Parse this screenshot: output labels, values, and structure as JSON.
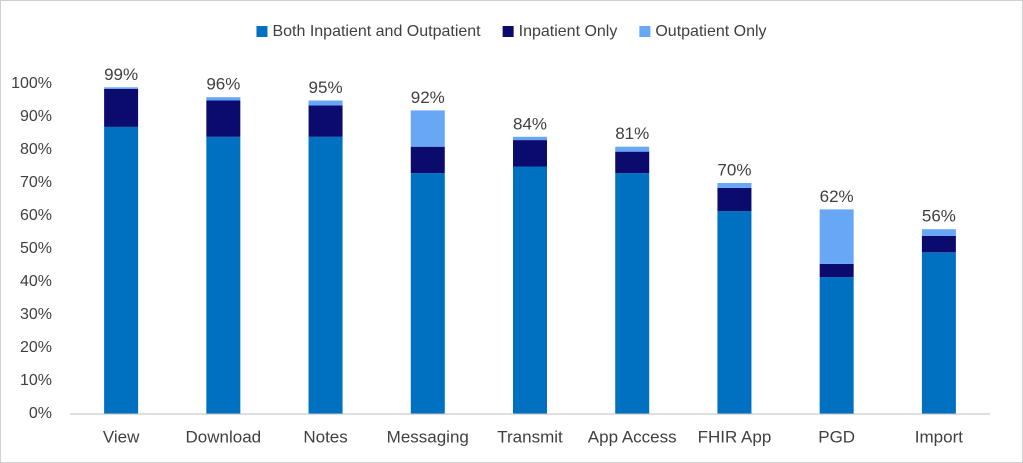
{
  "chart_data": {
    "type": "stacked_bar",
    "categories": [
      "View",
      "Download",
      "Notes",
      "Messaging",
      "Transmit",
      "App Access",
      "FHIR App",
      "PGD",
      "Import"
    ],
    "series": [
      {
        "name": "Both Inpatient and Outpatient",
        "color": "#0070c0",
        "values": [
          87,
          84,
          84,
          73,
          75,
          73,
          61.5,
          41.5,
          49
        ]
      },
      {
        "name": "Inpatient Only",
        "color": "#0b0b6e",
        "values": [
          11.5,
          11,
          9.5,
          8,
          8,
          6.5,
          7,
          4,
          5
        ]
      },
      {
        "name": "Outpatient Only",
        "color": "#68a6f6",
        "values": [
          0.5,
          1,
          1.5,
          11,
          1,
          1.5,
          1.5,
          16.5,
          2
        ]
      }
    ],
    "totals": [
      99,
      96,
      95,
      92,
      84,
      81,
      70,
      62,
      56
    ],
    "total_labels": [
      "99%",
      "96%",
      "95%",
      "92%",
      "84%",
      "81%",
      "70%",
      "62%",
      "56%"
    ],
    "ylim": [
      0,
      100
    ],
    "yticks": [
      {
        "value": 0,
        "label": "0%"
      },
      {
        "value": 10,
        "label": "10%"
      },
      {
        "value": 20,
        "label": "20%"
      },
      {
        "value": 30,
        "label": "30%"
      },
      {
        "value": 40,
        "label": "40%"
      },
      {
        "value": 50,
        "label": "50%"
      },
      {
        "value": 60,
        "label": "60%"
      },
      {
        "value": 70,
        "label": "70%"
      },
      {
        "value": 80,
        "label": "80%"
      },
      {
        "value": 90,
        "label": "90%"
      },
      {
        "value": 100,
        "label": "100%"
      }
    ],
    "legend": "top"
  }
}
